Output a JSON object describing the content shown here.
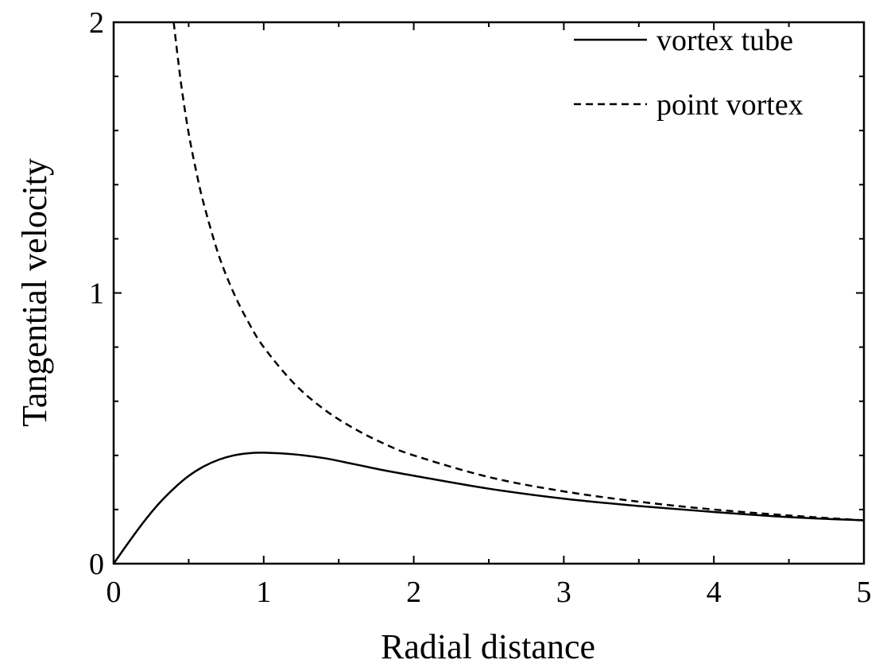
{
  "chart_data": {
    "type": "line",
    "xlabel": "Radial distance",
    "ylabel": "Tangential velocity",
    "xlim": [
      0,
      5
    ],
    "ylim": [
      0,
      2
    ],
    "x_ticks": [
      0,
      1,
      2,
      3,
      4,
      5
    ],
    "y_ticks": [
      0,
      1,
      2
    ],
    "x_tick_labels": [
      "0",
      "1",
      "2",
      "3",
      "4",
      "5"
    ],
    "y_tick_labels": [
      "0",
      "1",
      "2"
    ],
    "grid": false,
    "legend_position": "top-right",
    "series": [
      {
        "name": "vortex tube",
        "style": "solid",
        "color": "#000000",
        "x": [
          0.0,
          0.1,
          0.2,
          0.3,
          0.4,
          0.5,
          0.6,
          0.7,
          0.8,
          0.9,
          1.0,
          1.2,
          1.4,
          1.6,
          1.8,
          2.0,
          2.5,
          3.0,
          3.5,
          4.0,
          4.5,
          5.0
        ],
        "y": [
          0.0,
          0.079,
          0.154,
          0.221,
          0.277,
          0.324,
          0.359,
          0.384,
          0.4,
          0.408,
          0.41,
          0.404,
          0.39,
          0.368,
          0.345,
          0.325,
          0.277,
          0.24,
          0.213,
          0.191,
          0.172,
          0.16
        ]
      },
      {
        "name": "point vortex",
        "style": "dashed",
        "color": "#000000",
        "x": [
          0.4,
          0.45,
          0.5,
          0.55,
          0.6,
          0.7,
          0.8,
          0.9,
          1.0,
          1.2,
          1.4,
          1.6,
          1.8,
          2.0,
          2.5,
          3.0,
          3.5,
          4.0,
          4.5,
          5.0
        ],
        "y": [
          2.0,
          1.77,
          1.59,
          1.45,
          1.33,
          1.14,
          1.0,
          0.89,
          0.8,
          0.667,
          0.571,
          0.5,
          0.444,
          0.4,
          0.32,
          0.267,
          0.229,
          0.2,
          0.178,
          0.16
        ]
      }
    ]
  }
}
